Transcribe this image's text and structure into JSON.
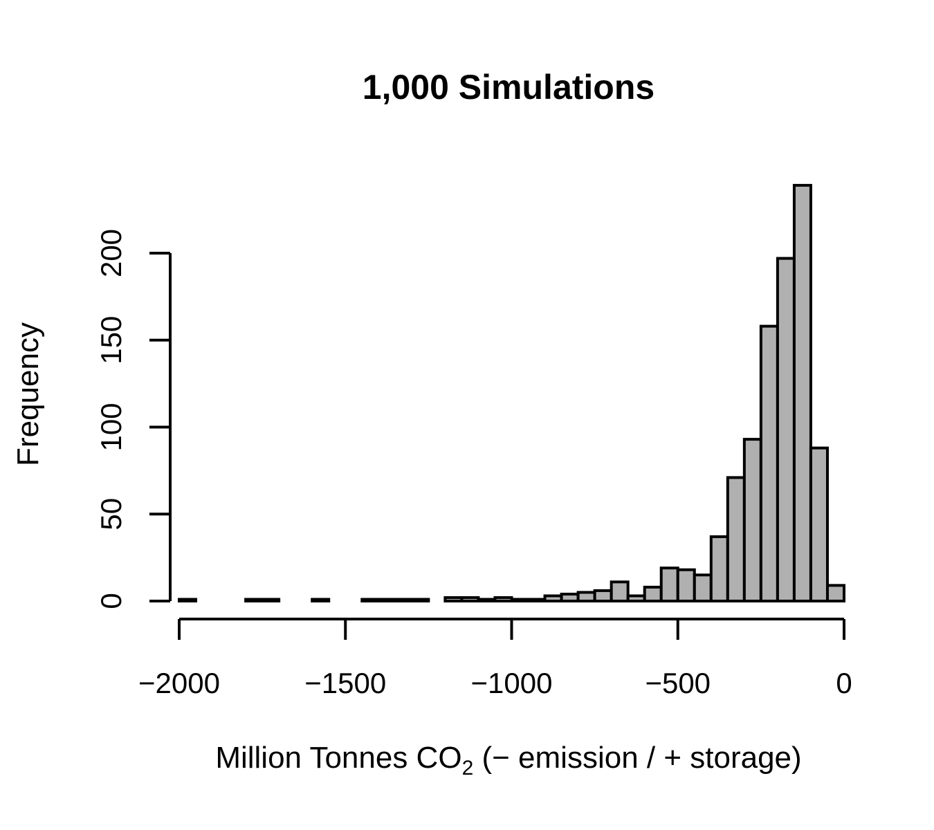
{
  "chart_data": {
    "type": "bar",
    "title": "1,000 Simulations",
    "xlabel_main": "Million Tonnes CO",
    "xlabel_sub": "2",
    "xlabel_rest": " (− emission / + storage)",
    "ylabel": "Frequency",
    "bar_color": "#b0b0b0",
    "bin_width": 50,
    "xlim": [
      -2025,
      0
    ],
    "ylim": [
      0,
      240
    ],
    "x_ticks": [
      {
        "value": -2000,
        "label": "−2000"
      },
      {
        "value": -1500,
        "label": "−1500"
      },
      {
        "value": -1000,
        "label": "−1000"
      },
      {
        "value": -500,
        "label": "−500"
      },
      {
        "value": 0,
        "label": "0"
      }
    ],
    "y_ticks": [
      {
        "value": 0,
        "label": "0"
      },
      {
        "value": 50,
        "label": "50"
      },
      {
        "value": 100,
        "label": "100"
      },
      {
        "value": 150,
        "label": "150"
      },
      {
        "value": 200,
        "label": "200"
      }
    ],
    "bins": [
      {
        "start": -2000,
        "end": -1950,
        "count": 1
      },
      {
        "start": -1950,
        "end": -1900,
        "count": 0
      },
      {
        "start": -1900,
        "end": -1850,
        "count": 0
      },
      {
        "start": -1850,
        "end": -1800,
        "count": 0
      },
      {
        "start": -1800,
        "end": -1750,
        "count": 1
      },
      {
        "start": -1750,
        "end": -1700,
        "count": 1
      },
      {
        "start": -1700,
        "end": -1650,
        "count": 0
      },
      {
        "start": -1650,
        "end": -1600,
        "count": 0
      },
      {
        "start": -1600,
        "end": -1550,
        "count": 1
      },
      {
        "start": -1550,
        "end": -1500,
        "count": 0
      },
      {
        "start": -1500,
        "end": -1450,
        "count": 0
      },
      {
        "start": -1450,
        "end": -1400,
        "count": 1
      },
      {
        "start": -1400,
        "end": -1350,
        "count": 1
      },
      {
        "start": -1350,
        "end": -1300,
        "count": 1
      },
      {
        "start": -1300,
        "end": -1250,
        "count": 1
      },
      {
        "start": -1250,
        "end": -1200,
        "count": 0
      },
      {
        "start": -1200,
        "end": -1150,
        "count": 2
      },
      {
        "start": -1150,
        "end": -1100,
        "count": 2
      },
      {
        "start": -1100,
        "end": -1050,
        "count": 1
      },
      {
        "start": -1050,
        "end": -1000,
        "count": 2
      },
      {
        "start": -1000,
        "end": -950,
        "count": 1
      },
      {
        "start": -950,
        "end": -900,
        "count": 1
      },
      {
        "start": -900,
        "end": -850,
        "count": 3
      },
      {
        "start": -850,
        "end": -800,
        "count": 4
      },
      {
        "start": -800,
        "end": -750,
        "count": 5
      },
      {
        "start": -750,
        "end": -700,
        "count": 6
      },
      {
        "start": -700,
        "end": -650,
        "count": 11
      },
      {
        "start": -650,
        "end": -600,
        "count": 3
      },
      {
        "start": -600,
        "end": -550,
        "count": 8
      },
      {
        "start": -550,
        "end": -500,
        "count": 19
      },
      {
        "start": -500,
        "end": -450,
        "count": 18
      },
      {
        "start": -450,
        "end": -400,
        "count": 15
      },
      {
        "start": -400,
        "end": -350,
        "count": 37
      },
      {
        "start": -350,
        "end": -300,
        "count": 71
      },
      {
        "start": -300,
        "end": -250,
        "count": 93
      },
      {
        "start": -250,
        "end": -200,
        "count": 158
      },
      {
        "start": -200,
        "end": -150,
        "count": 197
      },
      {
        "start": -150,
        "end": -100,
        "count": 239
      },
      {
        "start": -100,
        "end": -50,
        "count": 88
      },
      {
        "start": -50,
        "end": 0,
        "count": 9
      }
    ]
  }
}
